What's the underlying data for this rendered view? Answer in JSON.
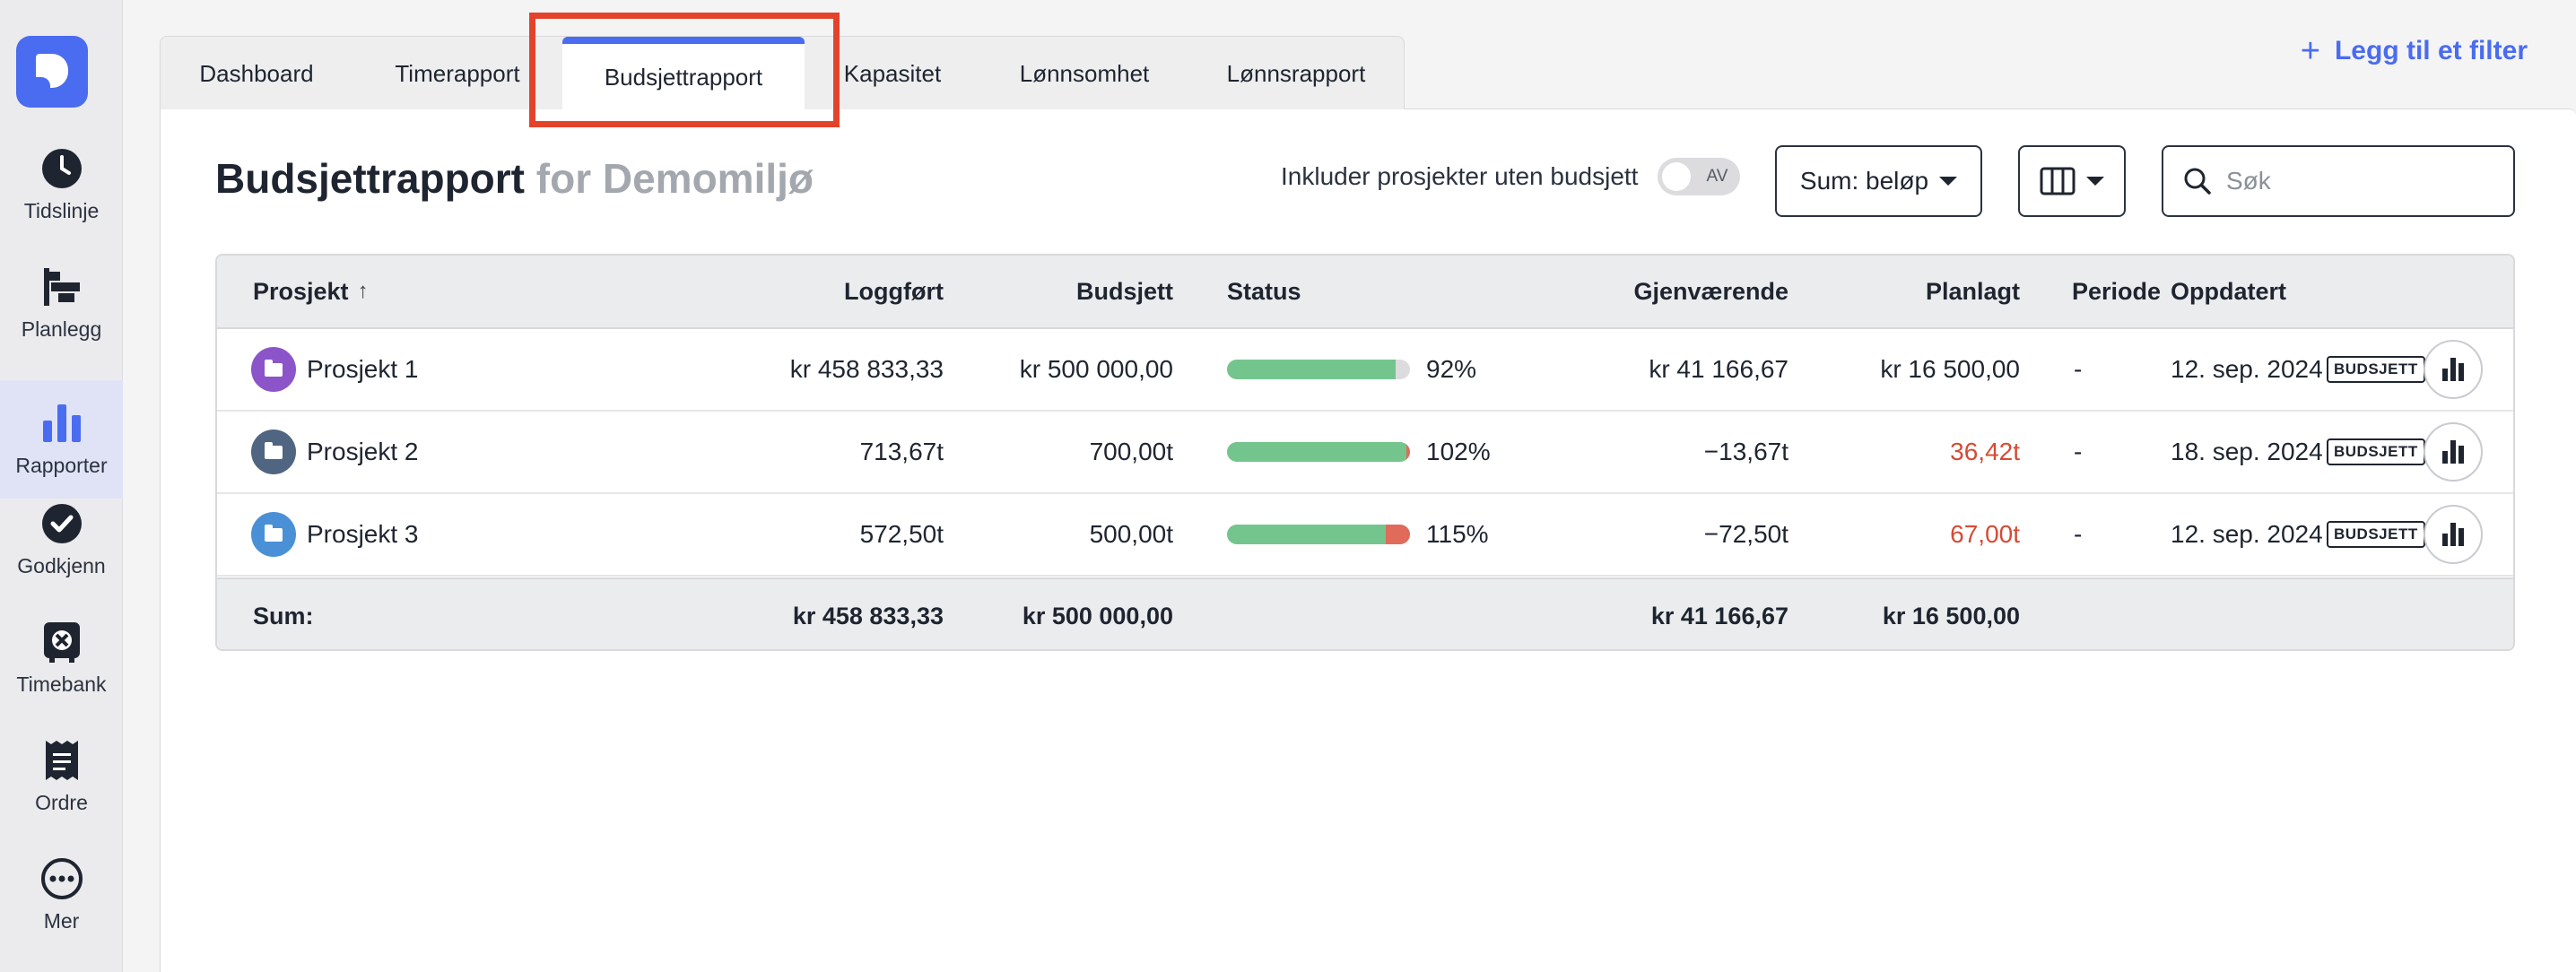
{
  "sidebar": {
    "items": [
      {
        "label": "Tidslinje",
        "icon": "clock-icon"
      },
      {
        "label": "Planlegg",
        "icon": "gantt-icon"
      },
      {
        "label": "Rapporter",
        "icon": "bar-chart-icon"
      },
      {
        "label": "Godkjenn",
        "icon": "check-circle-icon"
      },
      {
        "label": "Timebank",
        "icon": "vault-icon"
      },
      {
        "label": "Ordre",
        "icon": "receipt-icon"
      },
      {
        "label": "Mer",
        "icon": "more-icon"
      }
    ],
    "active": "Rapporter"
  },
  "tabs": [
    {
      "label": "Dashboard"
    },
    {
      "label": "Timerapport"
    },
    {
      "label": "Budsjettrapport"
    },
    {
      "label": "Kapasitet"
    },
    {
      "label": "Lønnsomhet"
    },
    {
      "label": "Lønnsrapport"
    }
  ],
  "active_tab": "Budsjettrapport",
  "add_filter": "Legg til et filter",
  "header": {
    "title": "Budsjettrapport",
    "subtitle": "for Demomiljø",
    "toggle_label": "Inkluder prosjekter uten budsjett",
    "toggle_state": "AV",
    "sum_button": "Sum: beløp",
    "search_placeholder": "Søk"
  },
  "colors": {
    "accent": "#4a6cf0",
    "progress_green": "#74c58d",
    "progress_red": "#e06b5a",
    "negative": "#d64a35"
  },
  "table": {
    "columns": {
      "prosjekt": "Prosjekt",
      "loggfort": "Loggført",
      "budsjett": "Budsjett",
      "status": "Status",
      "gjenvaerende": "Gjenværende",
      "planlagt": "Planlagt",
      "periode": "Periode",
      "oppdatert": "Oppdatert"
    },
    "sort_indicator": "↑",
    "rows": [
      {
        "name": "Prosjekt 1",
        "icon_color": "#8b55c9",
        "loggfort": "kr 458 833,33",
        "budsjett": "kr 500 000,00",
        "pct": "92%",
        "progress": 0.92,
        "gjenvaerende": "kr 41 166,67",
        "planlagt": "kr 16 500,00",
        "planlagt_negative": false,
        "periode": "-",
        "oppdatert": "12. sep. 2024",
        "badge": "BUDSJETT"
      },
      {
        "name": "Prosjekt 2",
        "icon_color": "#4f6581",
        "loggfort": "713,67t",
        "budsjett": "700,00t",
        "pct": "102%",
        "progress": 1.02,
        "gjenvaerende": "−13,67t",
        "planlagt": "36,42t",
        "planlagt_negative": true,
        "periode": "-",
        "oppdatert": "18. sep. 2024",
        "badge": "BUDSJETT"
      },
      {
        "name": "Prosjekt 3",
        "icon_color": "#4a90d6",
        "loggfort": "572,50t",
        "budsjett": "500,00t",
        "pct": "115%",
        "progress": 1.15,
        "gjenvaerende": "−72,50t",
        "planlagt": "67,00t",
        "planlagt_negative": true,
        "periode": "-",
        "oppdatert": "12. sep. 2024",
        "badge": "BUDSJETT"
      }
    ],
    "sum": {
      "label": "Sum:",
      "loggfort": "kr 458 833,33",
      "budsjett": "kr 500 000,00",
      "gjenvaerende": "kr 41 166,67",
      "planlagt": "kr 16 500,00"
    }
  }
}
